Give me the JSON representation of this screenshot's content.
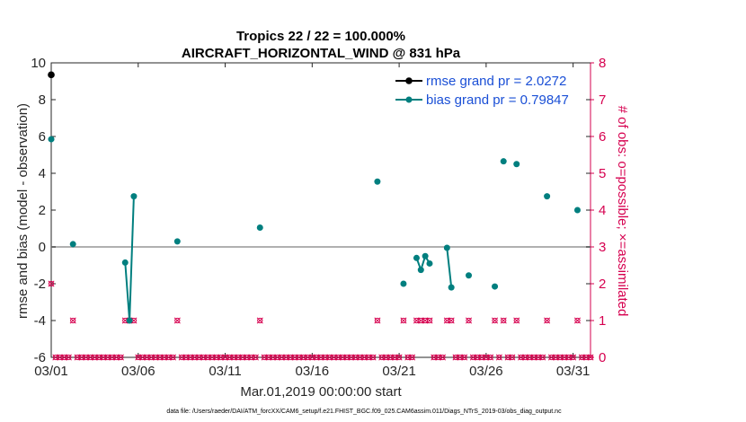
{
  "chart_data": {
    "type": "line",
    "title_line1": "Tropics 22 / 22 = 100.000%",
    "title_line2": "AIRCRAFT_HORIZONTAL_WIND @ 831 hPa",
    "ylabel": "rmse and bias (model - observation)",
    "ylabel_right": "# of obs: o=possible; ×=assimilated",
    "xlabel": "Mar.01,2019 00:00:00 start",
    "footnote": "data file: /Users/raeder/DAI/ATM_forcXX/CAM6_setup/f.e21.FHIST_BGC.f09_025.CAM6assim.011/Diags_NTrS_2019-03/obs_diag_output.nc",
    "x_tick_labels": [
      "03/01",
      "03/06",
      "03/11",
      "03/16",
      "03/21",
      "03/26",
      "03/31"
    ],
    "x_tick_days": [
      1,
      6,
      11,
      16,
      21,
      26,
      31
    ],
    "ylim": [
      -6,
      10
    ],
    "y_ticks": [
      -6,
      -4,
      -2,
      0,
      2,
      4,
      6,
      8,
      10
    ],
    "ylim_right": [
      0,
      8
    ],
    "y_ticks_right": [
      0,
      1,
      2,
      3,
      4,
      5,
      6,
      7,
      8
    ],
    "xlim_days": [
      1,
      32
    ],
    "zero_line": 0,
    "colors": {
      "rmse": "#000000",
      "bias": "#007f7f",
      "obs": "#d6004f",
      "legend_text": "#1a4fd6",
      "zero_line": "#b0b0b0"
    },
    "series": [
      {
        "name": "rmse grand pr = 2.0272",
        "points": [
          [
            1.0,
            9.35
          ]
        ]
      },
      {
        "name": "bias grand pr = 0.79847",
        "segments": [
          [
            [
              1.0,
              5.85
            ]
          ],
          [
            [
              2.25,
              0.15
            ]
          ],
          [
            [
              5.25,
              -0.85
            ],
            [
              5.5,
              -4.0
            ],
            [
              5.75,
              2.75
            ]
          ],
          [
            [
              8.25,
              0.3
            ]
          ],
          [
            [
              13.0,
              1.05
            ]
          ],
          [
            [
              19.75,
              3.55
            ]
          ],
          [
            [
              21.25,
              -2.0
            ]
          ],
          [
            [
              22.0,
              -0.6
            ],
            [
              22.25,
              -1.25
            ],
            [
              22.5,
              -0.5
            ],
            [
              22.75,
              -0.9
            ]
          ],
          [
            [
              23.75,
              -0.05
            ],
            [
              24.0,
              -2.2
            ]
          ],
          [
            [
              25.0,
              -1.55
            ]
          ],
          [
            [
              26.5,
              -2.15
            ]
          ],
          [
            [
              27.0,
              4.65
            ]
          ],
          [
            [
              27.75,
              4.5
            ]
          ],
          [
            [
              29.5,
              2.75
            ]
          ],
          [
            [
              31.25,
              2.0
            ]
          ]
        ]
      }
    ],
    "obs_assimilated": {
      "days": [
        1.0,
        2.25,
        5.25,
        5.5,
        5.75,
        8.25,
        13.0,
        19.75,
        21.25,
        22.0,
        22.25,
        22.5,
        22.75,
        23.75,
        24.0,
        25.0,
        26.5,
        27.0,
        27.75,
        29.5,
        31.25
      ],
      "counts": [
        2,
        1,
        1,
        1,
        1,
        1,
        1,
        1,
        1,
        1,
        1,
        1,
        1,
        1,
        1,
        1,
        1,
        1,
        1,
        1,
        1
      ]
    },
    "obs_zero_count": 0,
    "obs_interval_days": 0.25
  }
}
